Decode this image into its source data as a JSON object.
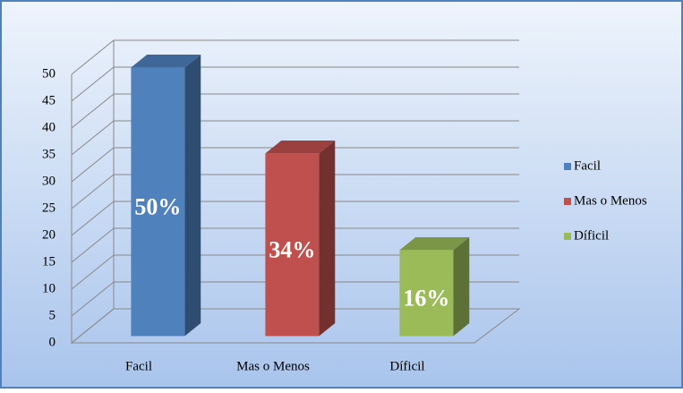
{
  "chart_data": {
    "type": "bar3d",
    "categories": [
      "Facil",
      "Mas o Menos",
      "Díficil"
    ],
    "values": [
      50,
      34,
      16
    ],
    "value_labels": [
      "50%",
      "34%",
      "16%"
    ],
    "colors": [
      "#4f81bd",
      "#c0504d",
      "#9bbb59"
    ],
    "ylim": [
      0,
      50
    ],
    "yticks": [
      0,
      5,
      10,
      15,
      20,
      25,
      30,
      35,
      40,
      45,
      50
    ],
    "grid": true,
    "legend": "right"
  }
}
